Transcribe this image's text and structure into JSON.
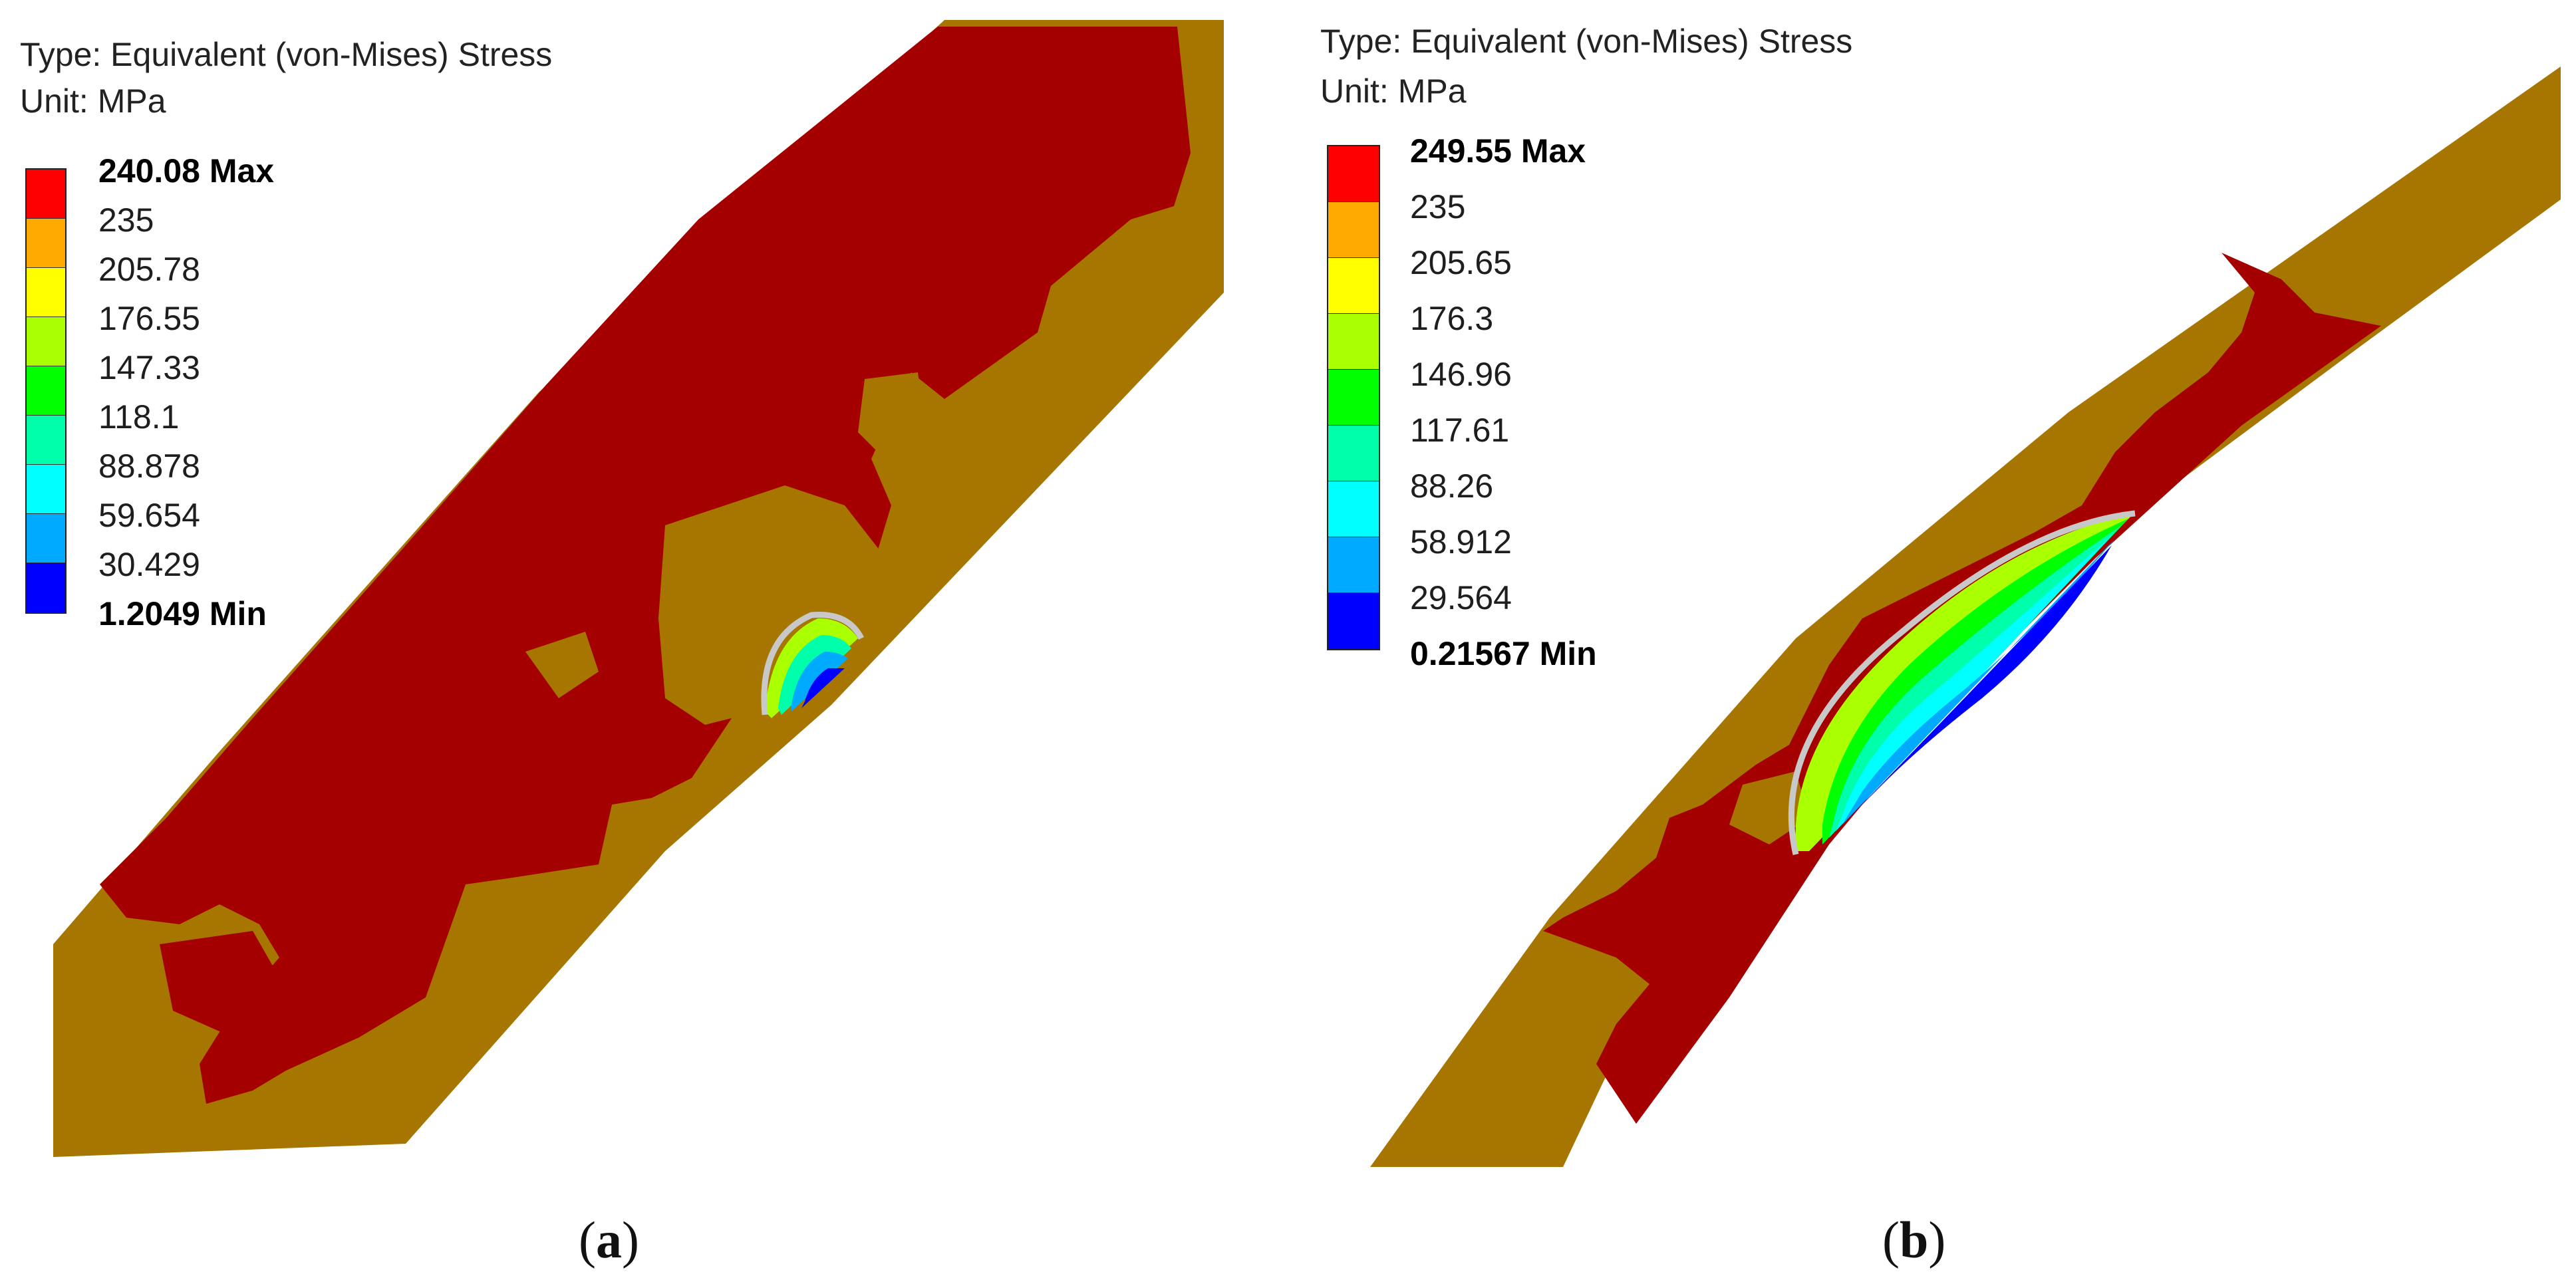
{
  "panels": [
    {
      "id": "a",
      "type_line": "Type: Equivalent (von-Mises) Stress",
      "unit_line": "Unit: MPa",
      "legend": [
        {
          "label": "240.08 Max",
          "bold": true
        },
        {
          "label": "235"
        },
        {
          "label": "205.78"
        },
        {
          "label": "176.55"
        },
        {
          "label": "147.33"
        },
        {
          "label": "118.1"
        },
        {
          "label": "88.878"
        },
        {
          "label": "59.654"
        },
        {
          "label": "30.429"
        },
        {
          "label": "1.2049 Min",
          "bold": true
        }
      ],
      "caption": "a"
    },
    {
      "id": "b",
      "type_line": "Type: Equivalent (von-Mises) Stress",
      "unit_line": "Unit: MPa",
      "legend": [
        {
          "label": "249.55 Max",
          "bold": true
        },
        {
          "label": "235"
        },
        {
          "label": "205.65"
        },
        {
          "label": "176.3"
        },
        {
          "label": "146.96"
        },
        {
          "label": "117.61"
        },
        {
          "label": "88.26"
        },
        {
          "label": "58.912"
        },
        {
          "label": "29.564"
        },
        {
          "label": "0.21567 Min",
          "bold": true
        }
      ],
      "caption": "b"
    }
  ],
  "colors": {
    "scale": [
      "#ff0000",
      "#ffaa00",
      "#ffff00",
      "#aaff00",
      "#00ff00",
      "#00ffaa",
      "#00ffff",
      "#00aaff",
      "#0000ff"
    ],
    "over_yield": "#a50000",
    "base_metal": "#a67600",
    "defect_outline": "#c8c8c8"
  }
}
